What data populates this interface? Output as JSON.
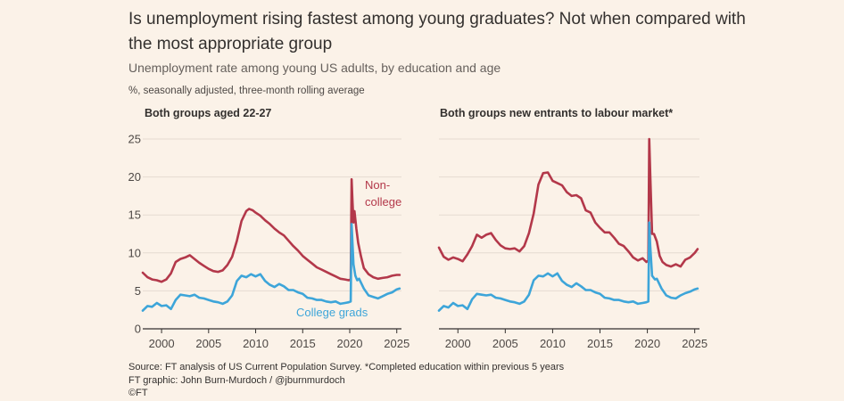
{
  "header": {
    "title": "Is unemployment rising fastest among young graduates? Not when compared with the most appropriate group",
    "subtitle": "Unemployment rate among young US adults, by education and age",
    "units": "%, seasonally adjusted, three-month rolling average"
  },
  "footer": {
    "source": "Source: FT analysis of US Current Population Survey. *Completed education within previous 5 years",
    "credit": "FT graphic: John Burn-Murdoch / @jburnmurdoch",
    "copyright": "©FT"
  },
  "colors": {
    "background": "#fbf2e8",
    "non_college": "#b3384a",
    "college": "#3da5d9",
    "grid": "#e5dbd1",
    "axis": "#33302e"
  },
  "chart_data": [
    {
      "type": "line",
      "title": "Both groups aged 22-27",
      "xlim": [
        1998,
        2025.5
      ],
      "ylim": [
        0,
        25
      ],
      "x_ticks": [
        2000,
        2005,
        2010,
        2015,
        2020,
        2025
      ],
      "y_ticks": [
        0,
        5,
        10,
        15,
        20,
        25
      ],
      "grid": true,
      "series": [
        {
          "name": "Non-college",
          "key": "non_college",
          "label_lines": [
            "Non-",
            "college"
          ],
          "x": [
            1998,
            1998.5,
            1999,
            1999.5,
            2000,
            2000.5,
            2001,
            2001.5,
            2002,
            2002.5,
            2003,
            2003.5,
            2004,
            2004.5,
            2005,
            2005.5,
            2006,
            2006.5,
            2007,
            2007.5,
            2008,
            2008.5,
            2009,
            2009.3,
            2009.7,
            2010,
            2010.5,
            2011,
            2011.5,
            2012,
            2012.5,
            2013,
            2013.5,
            2014,
            2014.5,
            2015,
            2015.5,
            2016,
            2016.5,
            2017,
            2017.5,
            2018,
            2018.5,
            2019,
            2019.5,
            2019.9,
            2020.1,
            2020.2,
            2020.3,
            2020.4,
            2020.5,
            2020.7,
            2020.9,
            2021.2,
            2021.5,
            2022,
            2022.5,
            2023,
            2023.5,
            2024,
            2024.5,
            2025,
            2025.3
          ],
          "y": [
            7.4,
            6.8,
            6.5,
            6.4,
            6.2,
            6.5,
            7.3,
            8.8,
            9.2,
            9.4,
            9.7,
            9.2,
            8.7,
            8.3,
            7.9,
            7.6,
            7.5,
            7.7,
            8.4,
            9.5,
            11.6,
            14.2,
            15.5,
            15.8,
            15.6,
            15.3,
            14.9,
            14.3,
            13.8,
            13.2,
            12.7,
            12.3,
            11.6,
            10.9,
            10.3,
            9.6,
            9.1,
            8.6,
            8.1,
            7.8,
            7.5,
            7.2,
            6.9,
            6.6,
            6.5,
            6.4,
            6.5,
            19.7,
            16.5,
            14.0,
            15.5,
            13.2,
            11.3,
            9.5,
            8.0,
            7.2,
            6.8,
            6.6,
            6.7,
            6.8,
            7.0,
            7.1,
            7.1
          ]
        },
        {
          "name": "College grads",
          "key": "college",
          "label_lines": [
            "College grads"
          ],
          "x": [
            1998,
            1998.5,
            1999,
            1999.5,
            2000,
            2000.5,
            2001,
            2001.5,
            2002,
            2002.5,
            2003,
            2003.5,
            2004,
            2004.5,
            2005,
            2005.5,
            2006,
            2006.5,
            2007,
            2007.5,
            2008,
            2008.5,
            2009,
            2009.5,
            2010,
            2010.5,
            2011,
            2011.5,
            2012,
            2012.5,
            2013,
            2013.5,
            2014,
            2014.5,
            2015,
            2015.5,
            2016,
            2016.5,
            2017,
            2017.5,
            2018,
            2018.5,
            2019,
            2019.5,
            2019.9,
            2020.1,
            2020.2,
            2020.3,
            2020.4,
            2020.6,
            2020.8,
            2021,
            2021.5,
            2022,
            2022.5,
            2023,
            2023.5,
            2024,
            2024.5,
            2025,
            2025.3
          ],
          "y": [
            2.4,
            3.0,
            2.9,
            3.4,
            3.0,
            3.1,
            2.6,
            3.8,
            4.5,
            4.4,
            4.3,
            4.5,
            4.1,
            4.0,
            3.8,
            3.6,
            3.5,
            3.3,
            3.6,
            4.4,
            6.3,
            7.0,
            6.8,
            7.2,
            6.9,
            7.2,
            6.3,
            5.8,
            5.5,
            5.9,
            5.6,
            5.1,
            5.1,
            4.8,
            4.6,
            4.1,
            4.0,
            3.8,
            3.8,
            3.6,
            3.5,
            3.6,
            3.3,
            3.4,
            3.5,
            3.6,
            13.8,
            11.0,
            8.5,
            7.0,
            6.4,
            6.6,
            5.3,
            4.4,
            4.2,
            4.0,
            4.3,
            4.6,
            4.8,
            5.2,
            5.3
          ]
        }
      ]
    },
    {
      "type": "line",
      "title": "Both groups new entrants to labour market*",
      "xlim": [
        1998,
        2025.5
      ],
      "ylim": [
        0,
        25
      ],
      "x_ticks": [
        2000,
        2005,
        2010,
        2015,
        2020,
        2025
      ],
      "y_ticks": [
        0,
        5,
        10,
        15,
        20,
        25
      ],
      "grid": true,
      "series": [
        {
          "name": "Non-college",
          "key": "non_college",
          "x": [
            1998,
            1998.5,
            1999,
            1999.5,
            2000,
            2000.5,
            2001,
            2001.5,
            2002,
            2002.5,
            2003,
            2003.5,
            2004,
            2004.5,
            2005,
            2005.5,
            2006,
            2006.5,
            2007,
            2007.5,
            2008,
            2008.5,
            2009,
            2009.5,
            2010,
            2010.5,
            2011,
            2011.5,
            2012,
            2012.5,
            2013,
            2013.5,
            2014,
            2014.5,
            2015,
            2015.5,
            2016,
            2016.5,
            2017,
            2017.5,
            2018,
            2018.5,
            2019,
            2019.5,
            2019.9,
            2020.1,
            2020.2,
            2020.3,
            2020.5,
            2020.7,
            2021,
            2021.3,
            2021.6,
            2022,
            2022.5,
            2023,
            2023.5,
            2024,
            2024.5,
            2025,
            2025.3
          ],
          "y": [
            10.7,
            9.5,
            9.1,
            9.4,
            9.2,
            8.9,
            9.8,
            10.9,
            12.4,
            12.0,
            12.4,
            12.6,
            11.7,
            11.0,
            10.6,
            10.5,
            10.6,
            10.2,
            10.9,
            12.6,
            15.2,
            19.0,
            20.5,
            20.6,
            19.5,
            19.2,
            18.9,
            18.0,
            17.5,
            17.6,
            17.2,
            15.6,
            15.3,
            14.0,
            13.3,
            12.7,
            12.7,
            12.0,
            11.2,
            10.9,
            10.2,
            9.4,
            9.0,
            9.3,
            8.8,
            9.0,
            25.0,
            20.5,
            12.5,
            12.5,
            11.5,
            9.6,
            8.8,
            8.4,
            8.2,
            8.5,
            8.2,
            9.1,
            9.4,
            10.0,
            10.5
          ]
        },
        {
          "name": "College grads",
          "key": "college",
          "x": [
            1998,
            1998.5,
            1999,
            1999.5,
            2000,
            2000.5,
            2001,
            2001.5,
            2002,
            2002.5,
            2003,
            2003.5,
            2004,
            2004.5,
            2005,
            2005.5,
            2006,
            2006.5,
            2007,
            2007.5,
            2008,
            2008.5,
            2009,
            2009.5,
            2010,
            2010.5,
            2011,
            2011.5,
            2012,
            2012.5,
            2013,
            2013.5,
            2014,
            2014.5,
            2015,
            2015.5,
            2016,
            2016.5,
            2017,
            2017.5,
            2018,
            2018.5,
            2019,
            2019.5,
            2019.9,
            2020.1,
            2020.2,
            2020.3,
            2020.5,
            2020.8,
            2021,
            2021.5,
            2022,
            2022.5,
            2023,
            2023.5,
            2024,
            2024.5,
            2025,
            2025.3
          ],
          "y": [
            2.4,
            3.0,
            2.8,
            3.4,
            3.0,
            3.1,
            2.6,
            3.9,
            4.6,
            4.5,
            4.4,
            4.5,
            4.1,
            4.0,
            3.8,
            3.6,
            3.5,
            3.3,
            3.6,
            4.5,
            6.4,
            7.0,
            6.9,
            7.3,
            6.9,
            7.3,
            6.3,
            5.8,
            5.5,
            6.0,
            5.6,
            5.1,
            5.1,
            4.8,
            4.6,
            4.1,
            4.0,
            3.8,
            3.8,
            3.6,
            3.5,
            3.6,
            3.3,
            3.4,
            3.5,
            3.6,
            14.0,
            11.0,
            7.0,
            6.5,
            6.6,
            5.3,
            4.4,
            4.1,
            4.0,
            4.4,
            4.7,
            4.9,
            5.2,
            5.3
          ]
        }
      ]
    }
  ]
}
